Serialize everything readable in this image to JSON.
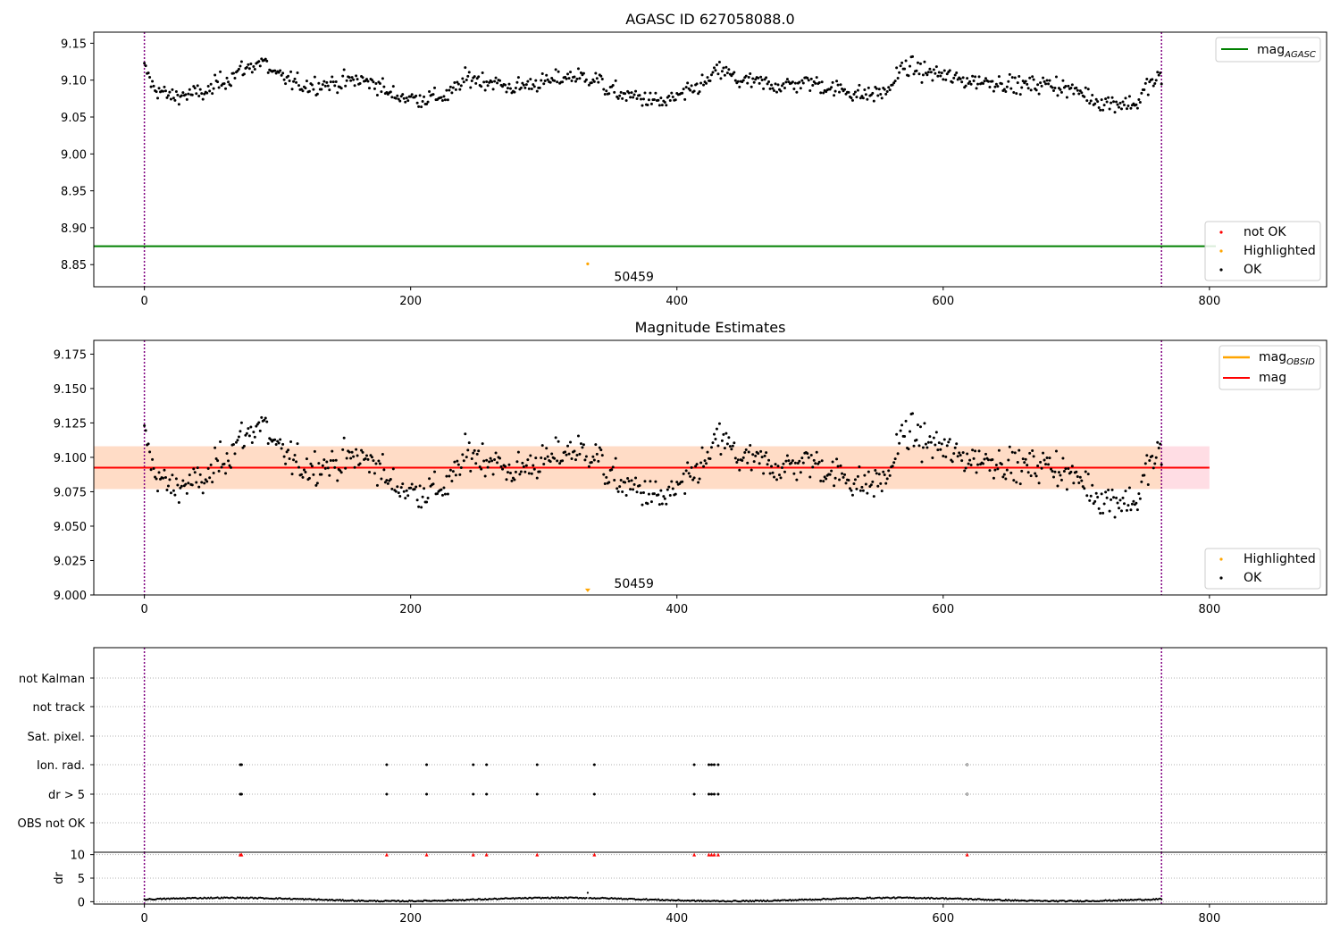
{
  "chart_data": [
    {
      "type": "scatter",
      "title": "AGASC ID 627058088.0",
      "xlim": [
        -38,
        888
      ],
      "ylim": [
        8.82,
        9.165
      ],
      "xticks": [
        0,
        200,
        400,
        600,
        800
      ],
      "yticks": [
        8.85,
        8.9,
        8.95,
        9.0,
        9.05,
        9.1,
        9.15
      ],
      "ytick_format": 2,
      "vlines": [
        0,
        764
      ],
      "hlines": [
        {
          "name": "mag_AGASC",
          "y": 8.875,
          "color": "#008000"
        }
      ],
      "series": [
        {
          "name": "not OK",
          "color": "#ff0000",
          "points": []
        },
        {
          "name": "Highlighted",
          "color": "#ffa500",
          "points": [
            [
              333,
              8.851
            ]
          ]
        },
        {
          "name": "OK",
          "color": "#000000",
          "generated": true,
          "n_points": 765
        }
      ],
      "annotations": [
        {
          "text": "50459",
          "x": 383,
          "y": 8.834
        }
      ],
      "legend_main": {
        "position": "top-right",
        "entries": [
          {
            "label": "mag",
            "sub": "AGASC",
            "color": "#008000"
          }
        ]
      },
      "legend_points": {
        "position": "bottom-right",
        "entries": [
          {
            "label": "not OK",
            "color": "#ff0000"
          },
          {
            "label": "Highlighted",
            "color": "#ffa500"
          },
          {
            "label": "OK",
            "color": "#000000"
          }
        ]
      }
    },
    {
      "type": "scatter",
      "title": "Magnitude Estimates",
      "xlim": [
        -38,
        888
      ],
      "ylim": [
        9.0,
        9.185
      ],
      "xticks": [
        0,
        200,
        400,
        600,
        800
      ],
      "yticks": [
        9.0,
        9.025,
        9.05,
        9.075,
        9.1,
        9.125,
        9.15,
        9.175
      ],
      "ytick_format": 3,
      "vlines": [
        0,
        764
      ],
      "mean_line": {
        "name": "mag",
        "y": 9.0925,
        "x0": -38,
        "x1": 800,
        "color": "#ff0000"
      },
      "band_outer": {
        "y0": 9.077,
        "y1": 9.108,
        "x0": -38,
        "x1": 800,
        "color": "#ffdde4"
      },
      "band_inner": {
        "y0": 9.077,
        "y1": 9.108,
        "x0": -38,
        "x1": 764,
        "color": "#ffdcc6"
      },
      "series": [
        {
          "name": "Highlighted",
          "color": "#ffa500",
          "points": [
            [
              333,
              9.002
            ]
          ]
        },
        {
          "name": "OK",
          "color": "#000000",
          "generated": true,
          "n_points": 765
        }
      ],
      "annotations": [
        {
          "text": "50459",
          "x": 383,
          "y": 9.0085
        }
      ],
      "legend_main": {
        "position": "top-right",
        "entries": [
          {
            "label": "mag",
            "sub": "OBSID",
            "color": "#ffa500"
          },
          {
            "label": "mag",
            "sub": "",
            "color": "#ff0000"
          }
        ]
      },
      "legend_points": {
        "position": "bottom-right",
        "entries": [
          {
            "label": "Highlighted",
            "color": "#ffa500"
          },
          {
            "label": "OK",
            "color": "#000000"
          }
        ]
      }
    },
    {
      "type": "scatter",
      "title": "",
      "xlim": [
        -38,
        888
      ],
      "categories": [
        "not Kalman",
        "not track",
        "Sat. pixel.",
        "Ion. rad.",
        "dr > 5",
        "OBS not OK"
      ],
      "vlines": [
        0,
        764
      ],
      "flag_points": {
        "Ion. rad.": [
          72,
          73,
          182,
          212,
          247,
          257,
          295,
          338,
          413,
          424,
          426,
          428,
          431,
          618
        ],
        "dr > 5": [
          72,
          73,
          182,
          212,
          247,
          257,
          295,
          338,
          413,
          424,
          426,
          428,
          431,
          618
        ]
      }
    },
    {
      "type": "scatter",
      "title": "",
      "ylabel": "dr",
      "xlim": [
        -38,
        888
      ],
      "ylim": [
        -0.5,
        10.5
      ],
      "xticks": [
        0,
        200,
        400,
        600,
        800
      ],
      "yticks": [
        0,
        5,
        10
      ],
      "series": [
        {
          "name": "dr",
          "color": "#000000",
          "generated": true,
          "n_points": 765
        },
        {
          "name": "dr > 5 (clipped)",
          "color": "#ff0000",
          "x": [
            72,
            73,
            182,
            212,
            247,
            257,
            295,
            338,
            413,
            424,
            426,
            428,
            431,
            618
          ],
          "y": 10
        }
      ]
    }
  ]
}
